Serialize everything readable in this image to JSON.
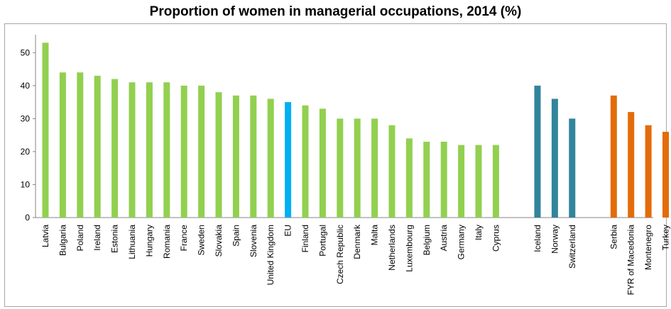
{
  "chart_data": {
    "type": "bar",
    "title": "Proportion of women in managerial occupations, 2014 (%)",
    "xlabel": "",
    "ylabel": "",
    "ylim": [
      0,
      55
    ],
    "yticks": [
      0,
      10,
      20,
      30,
      40,
      50
    ],
    "grid": false,
    "legend": "none",
    "groups": [
      {
        "color": "#92d050",
        "categories": [
          "Latvia",
          "Bulgaria",
          "Poland",
          "Ireland",
          "Estonia",
          "Lithuania",
          "Hungary",
          "Romania",
          "France",
          "Sweden",
          "Slovakia",
          "Spain",
          "Slovenia",
          "United Kingdom"
        ],
        "values": [
          53,
          44,
          44,
          43,
          42,
          41,
          41,
          41,
          40,
          40,
          38,
          37,
          37,
          36
        ]
      },
      {
        "color": "#00b0f0",
        "categories": [
          "EU"
        ],
        "values": [
          35
        ]
      },
      {
        "color": "#92d050",
        "categories": [
          "Finland",
          "Portugal",
          "Czech Republic",
          "Denmark",
          "Malta",
          "Netherlands",
          "Luxembourg",
          "Belgium",
          "Austria",
          "Germany",
          "Italy",
          "Cyprus"
        ],
        "values": [
          34,
          33,
          30,
          30,
          30,
          28,
          24,
          23,
          23,
          22,
          22,
          22
        ]
      },
      {
        "color": "#31849b",
        "categories": [
          "Iceland",
          "Norway",
          "Switzerland"
        ],
        "values": [
          40,
          36,
          30
        ]
      },
      {
        "color": "#e36c09",
        "categories": [
          "Serbia",
          "FYR of Macedonia",
          "Montenegro",
          "Turkey"
        ],
        "values": [
          37,
          32,
          28,
          26
        ]
      }
    ]
  }
}
